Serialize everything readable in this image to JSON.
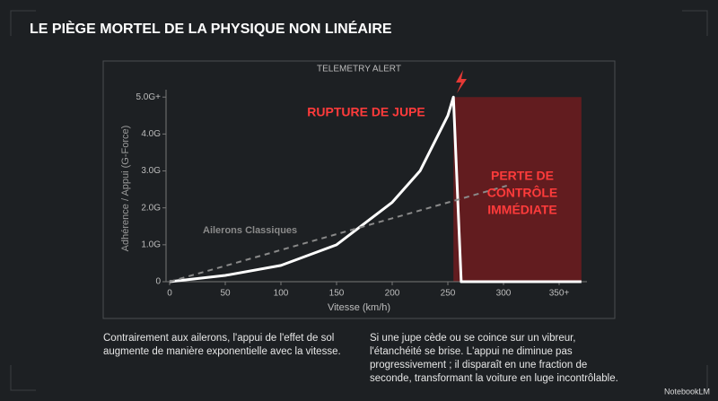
{
  "header": {
    "title": "LE PIÈGE MORTEL DE LA PHYSIQUE NON LINÉAIRE"
  },
  "chart_data": {
    "type": "line",
    "subtitle": "TELEMETRY ALERT",
    "x_label": "Vitesse (km/h)",
    "y_label": "Adhérence / Appui (G-Force)",
    "xlim": [
      0,
      375
    ],
    "ylim": [
      0,
      5.2
    ],
    "xticks": [
      0,
      50,
      100,
      150,
      200,
      250,
      300,
      {
        "value": 350,
        "label": "350+"
      }
    ],
    "yticks": [
      0,
      {
        "value": 1,
        "label": "1.0G"
      },
      {
        "value": 2,
        "label": "2.0G"
      },
      {
        "value": 3,
        "label": "3.0G"
      },
      {
        "value": 4,
        "label": "4.0G"
      },
      {
        "value": 5,
        "label": "5.0G+"
      }
    ],
    "series": [
      {
        "color": "#ffffff",
        "x": [
          0,
          50,
          100,
          150,
          200,
          225,
          250,
          255,
          262,
          370
        ],
        "values": [
          0,
          0.17,
          0.44,
          1.0,
          2.15,
          3.0,
          4.5,
          5.0,
          0,
          0
        ]
      },
      {
        "name": "Ailerons Classiques",
        "color": "#8a8a8a",
        "dash": true,
        "x": [
          0,
          303
        ],
        "values": [
          0,
          2.6
        ]
      }
    ],
    "shaded_region": {
      "x": [
        255,
        370
      ],
      "y": [
        0,
        5
      ],
      "color": "#6e1c1f"
    },
    "annotations": {
      "rupture": "RUPTURE DE JUPE",
      "loss": [
        "PERTE DE",
        "CONTRÔLE",
        "IMMÉDIATE"
      ]
    }
  },
  "captions": {
    "left": "Contrairement aux ailerons, l'appui de l'effet de sol augmente de manière exponentielle avec la vitesse.",
    "right": "Si une jupe cède ou se coince sur un vibreur, l'étanchéité se brise. L'appui ne diminue pas progressivement ; il disparaît en une fraction de seconde, transformant la voiture en luge incontrôlable."
  },
  "footer": {
    "brand": "NotebookLM"
  }
}
